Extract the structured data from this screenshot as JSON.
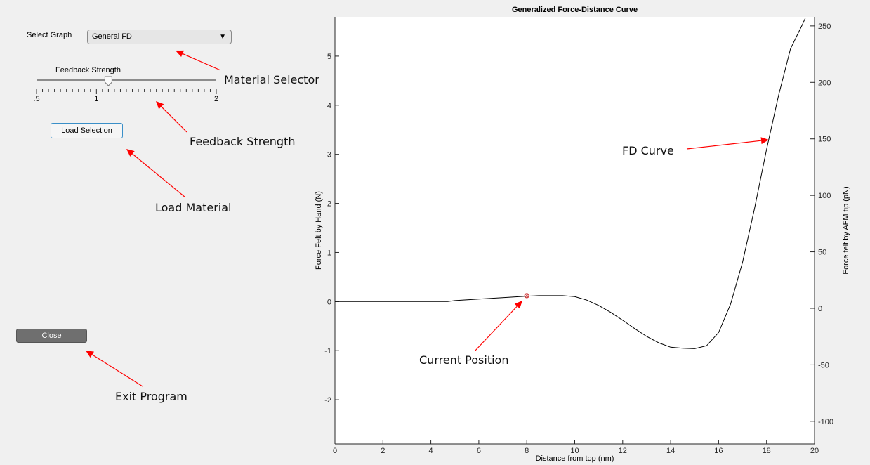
{
  "controls": {
    "select_graph_label": "Select Graph",
    "select_value": "General FD",
    "select_arrow": "▼",
    "feedback_title": "Feedback Strength",
    "slider_ticks": [
      ".5",
      "1",
      "2"
    ],
    "slider_value": 1.1,
    "load_button": "Load Selection",
    "close_button": "Close"
  },
  "annotations": {
    "material_selector": "Material Selector",
    "feedback_strength": "Feedback Strength",
    "load_material": "Load Material",
    "exit_program": "Exit Program",
    "current_position": "Current Position",
    "fd_curve": "FD Curve"
  },
  "colors": {
    "arrow": "#ff0000",
    "marker": "#d04040",
    "curve": "#000000",
    "accent": "#3a8fc8"
  },
  "chart_data": {
    "type": "line",
    "title": "Generalized Force-Distance Curve",
    "xlabel": "Distance from top (nm)",
    "ylabel": "Force Felt by Hand (N)",
    "y2label": "Force felt by AFM tip (pN)",
    "xlim": [
      0,
      20
    ],
    "ylim": [
      -2.9,
      5.8
    ],
    "y2lim": [
      -120,
      258
    ],
    "xticks": [
      "0",
      "2",
      "4",
      "6",
      "8",
      "10",
      "12",
      "14",
      "16",
      "18",
      "20"
    ],
    "yticks": [
      "-2",
      "-1",
      "0",
      "1",
      "2",
      "3",
      "4",
      "5"
    ],
    "y2ticks": [
      "-100",
      "-50",
      "0",
      "50",
      "100",
      "150",
      "200",
      "250"
    ],
    "series": [
      {
        "x": [
          0,
          4.7,
          5,
          6,
          7,
          8,
          8.5,
          9,
          9.5,
          10,
          10.5,
          11,
          11.5,
          12,
          12.5,
          13,
          13.5,
          14,
          14.5,
          15,
          15.5,
          16,
          16.5,
          17,
          17.5,
          18,
          18.5,
          19,
          19.5,
          19.62
        ],
        "y": [
          0,
          0,
          0.02,
          0.05,
          0.08,
          0.11,
          0.12,
          0.12,
          0.12,
          0.1,
          0.03,
          -0.08,
          -0.22,
          -0.38,
          -0.55,
          -0.71,
          -0.84,
          -0.93,
          -0.95,
          -0.96,
          -0.9,
          -0.63,
          -0.05,
          0.8,
          1.9,
          3.1,
          4.2,
          5.15,
          5.65,
          5.78
        ]
      }
    ],
    "current_position": {
      "x": 8,
      "y": 0.12
    },
    "grid": false
  }
}
